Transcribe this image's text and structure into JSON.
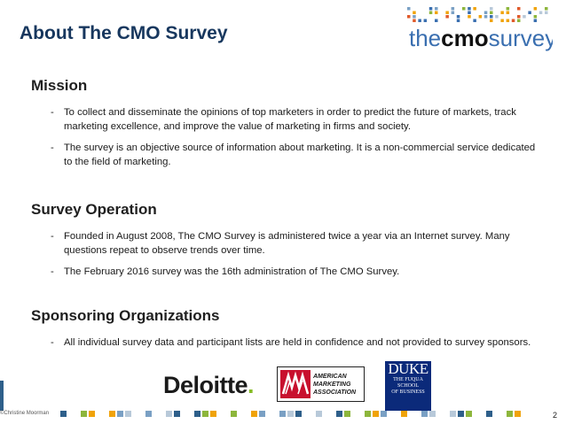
{
  "slide": {
    "title": "About The CMO Survey",
    "page_number": "2",
    "copyright": "©Christine Moorman"
  },
  "logo": {
    "text_the": "the",
    "text_cmo": "cmo",
    "text_survey": "survey",
    "colors": {
      "the": "#3a6fb0",
      "cmo": "#111111",
      "survey": "#3a6fb0"
    }
  },
  "sections": {
    "mission": {
      "heading": "Mission",
      "bullets": [
        "To collect and disseminate the opinions of top marketers in order to predict the future of markets, track marketing excellence, and improve the value of marketing in firms and society.",
        "The survey is an objective source of information about marketing. It is a non-commercial service dedicated to the field of marketing."
      ]
    },
    "operation": {
      "heading": "Survey Operation",
      "bullets": [
        "Founded in August 2008, The CMO Survey is administered twice a year via an Internet survey. Many questions repeat to observe trends over time.",
        "The February 2016 survey was the 16th administration of The CMO Survey."
      ]
    },
    "sponsors": {
      "heading": "Sponsoring Organizations",
      "bullets": [
        "All individual survey data and participant lists are held in confidence and not provided to survey sponsors."
      ]
    }
  },
  "sponsor_logos": {
    "deloitte": {
      "word": "Deloitte",
      "dot": ".",
      "dot_color": "#86bc25"
    },
    "ama": {
      "text": "AMERICAN\nMARKETING\nASSOCIATION",
      "accent": "#c8102e"
    },
    "duke": {
      "word": "DUKE",
      "sub": "THE FUQUA\nSCHOOL\nOF BUSINESS",
      "bg": "#0b2a7a"
    }
  },
  "theme": {
    "title_color": "#17375e",
    "band_colors": [
      "#2e5f8a",
      "#8db63c",
      "#f0a30a",
      "#7aa0c4",
      "#b8c9d9"
    ]
  }
}
